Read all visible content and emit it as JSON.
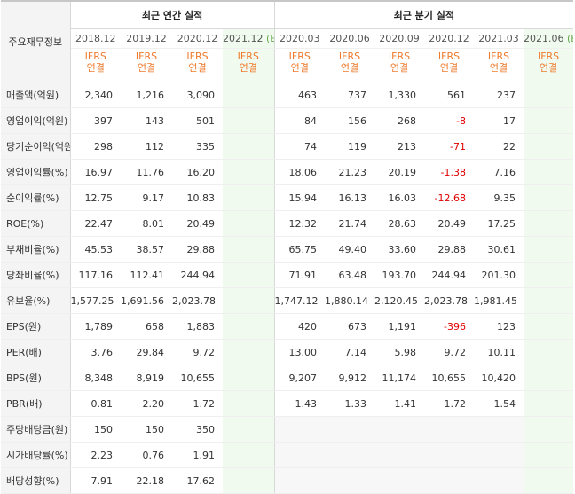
{
  "corner_label": "주요재무정보",
  "annual_group_label": "최근 연간 실적",
  "quarter_group_label": "최근 분기 실적",
  "annual_periods": [
    "2018.12",
    "2019.12",
    "2020.12",
    "2021.12"
  ],
  "quarter_periods": [
    "2020.03",
    "2020.06",
    "2020.09",
    "2020.12",
    "2021.03",
    "2021.06"
  ],
  "estimate_badge": "(E)",
  "basis_line1": "IFRS",
  "basis_line2": "연결",
  "colors": {
    "negative": "#e00000",
    "ifrs": "#ee7a2c",
    "estimate_bg": "#f1faee",
    "estimate_badge": "#6aa84f"
  },
  "rows": [
    {
      "label": "매출액(억원)",
      "annual": [
        "2,340",
        "1,216",
        "3,090",
        ""
      ],
      "quarter": [
        "463",
        "737",
        "1,330",
        "561",
        "237",
        ""
      ]
    },
    {
      "label": "영업이익(억원)",
      "annual": [
        "397",
        "143",
        "501",
        ""
      ],
      "quarter": [
        "84",
        "156",
        "268",
        "-8",
        "17",
        ""
      ]
    },
    {
      "label": "당기순이익(억원)",
      "annual": [
        "298",
        "112",
        "335",
        ""
      ],
      "quarter": [
        "74",
        "119",
        "213",
        "-71",
        "22",
        ""
      ]
    },
    {
      "label": "영업이익률(%)",
      "annual": [
        "16.97",
        "11.76",
        "16.20",
        ""
      ],
      "quarter": [
        "18.06",
        "21.23",
        "20.19",
        "-1.38",
        "7.16",
        ""
      ]
    },
    {
      "label": "순이익률(%)",
      "annual": [
        "12.75",
        "9.17",
        "10.83",
        ""
      ],
      "quarter": [
        "15.94",
        "16.13",
        "16.03",
        "-12.68",
        "9.35",
        ""
      ]
    },
    {
      "label": "ROE(%)",
      "annual": [
        "22.47",
        "8.01",
        "20.49",
        ""
      ],
      "quarter": [
        "12.32",
        "21.74",
        "28.63",
        "20.49",
        "17.25",
        ""
      ]
    },
    {
      "label": "부채비율(%)",
      "annual": [
        "45.53",
        "38.57",
        "29.88",
        ""
      ],
      "quarter": [
        "65.75",
        "49.40",
        "33.60",
        "29.88",
        "30.61",
        ""
      ]
    },
    {
      "label": "당좌비율(%)",
      "annual": [
        "117.16",
        "112.41",
        "244.94",
        ""
      ],
      "quarter": [
        "71.91",
        "63.48",
        "193.70",
        "244.94",
        "201.30",
        ""
      ]
    },
    {
      "label": "유보율(%)",
      "annual": [
        "1,577.25",
        "1,691.56",
        "2,023.78",
        ""
      ],
      "quarter": [
        "1,747.12",
        "1,880.14",
        "2,120.45",
        "2,023.78",
        "1,981.45",
        ""
      ]
    },
    {
      "label": "EPS(원)",
      "annual": [
        "1,789",
        "658",
        "1,883",
        ""
      ],
      "quarter": [
        "420",
        "673",
        "1,191",
        "-396",
        "123",
        ""
      ]
    },
    {
      "label": "PER(배)",
      "annual": [
        "3.76",
        "29.84",
        "9.72",
        ""
      ],
      "quarter": [
        "13.00",
        "7.14",
        "5.98",
        "9.72",
        "10.11",
        ""
      ]
    },
    {
      "label": "BPS(원)",
      "annual": [
        "8,348",
        "8,919",
        "10,655",
        ""
      ],
      "quarter": [
        "9,207",
        "9,912",
        "11,174",
        "10,655",
        "10,420",
        ""
      ]
    },
    {
      "label": "PBR(배)",
      "annual": [
        "0.81",
        "2.20",
        "1.72",
        ""
      ],
      "quarter": [
        "1.43",
        "1.33",
        "1.41",
        "1.72",
        "1.54",
        ""
      ]
    },
    {
      "label": "주당배당금(원)",
      "annual": [
        "150",
        "150",
        "350",
        ""
      ],
      "quarter": [
        "",
        "",
        "",
        "",
        "",
        ""
      ]
    },
    {
      "label": "시가배당률(%)",
      "annual": [
        "2.23",
        "0.76",
        "1.91",
        ""
      ],
      "quarter": [
        "",
        "",
        "",
        "",
        "",
        ""
      ]
    },
    {
      "label": "배당성향(%)",
      "annual": [
        "7.91",
        "22.18",
        "17.62",
        ""
      ],
      "quarter": [
        "",
        "",
        "",
        "",
        "",
        ""
      ]
    }
  ]
}
